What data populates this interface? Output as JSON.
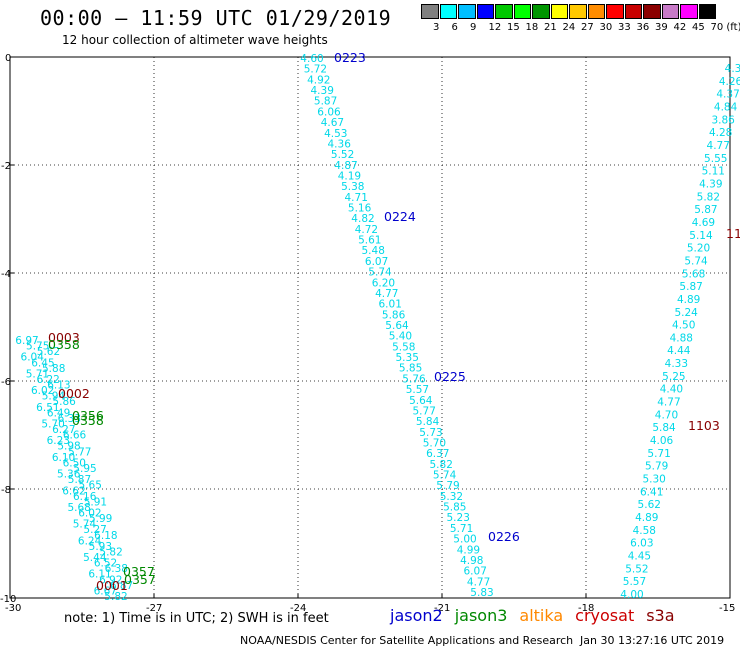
{
  "title": "00:00 – 11:59 UTC 01/29/2019",
  "subtitle": "12 hour collection of altimeter wave heights",
  "legend": {
    "colors": [
      "#808080",
      "#00ffff",
      "#00bfff",
      "#0000ff",
      "#00c800",
      "#00ff00",
      "#009600",
      "#ffff00",
      "#ffc800",
      "#ff8c00",
      "#ff0000",
      "#c80000",
      "#8b0000",
      "#c87ac8",
      "#ff00ff",
      "#000000"
    ],
    "labels": [
      "3",
      "6",
      "9",
      "12",
      "15",
      "18",
      "21",
      "24",
      "27",
      "30",
      "33",
      "36",
      "39",
      "42",
      "45",
      "70 (ft)"
    ]
  },
  "axes": {
    "x_ticks": [
      "-30",
      "-27",
      "-24",
      "-21",
      "-18",
      "-15"
    ],
    "y_ticks": [
      "0",
      "-2",
      "-4",
      "-6",
      "-8",
      "-10"
    ]
  },
  "colors": {
    "jason2": "#0000cc",
    "jason3": "#008800",
    "altika": "#ff8800",
    "cryosat": "#cc0000",
    "s3a": "#880000",
    "wave": "#00d8e8"
  },
  "tracks": [
    {
      "values": [
        "4.60",
        "5.72",
        "4.92",
        "4.39",
        "5.87",
        "6.06",
        "4.67",
        "4.53",
        "4.36",
        "5.52",
        "4.87",
        "4.19",
        "5.38",
        "4.71",
        "5.16",
        "4.82",
        "4.72",
        "5.61",
        "5.48",
        "6.07",
        "5.74",
        "6.20",
        "4.77",
        "6.01",
        "5.86",
        "5.64",
        "5.40",
        "5.58",
        "5.35",
        "5.85",
        "5.76",
        "5.57",
        "5.64",
        "5.77",
        "5.84",
        "5.73",
        "5.70",
        "6.37",
        "5.82",
        "5.74",
        "5.79",
        "5.32",
        "5.85",
        "5.23",
        "5.71",
        "5.00",
        "4.99",
        "4.98",
        "6.07",
        "4.77",
        "5.83"
      ]
    },
    {
      "values": [
        "4.3",
        "4.26",
        "4.37",
        "4.84",
        "3.86",
        "4.28",
        "4.77",
        "5.55",
        "5.11",
        "4.39",
        "5.82",
        "5.87",
        "4.69",
        "5.14",
        "5.20",
        "5.74",
        "5.68",
        "5.87",
        "4.89",
        "5.24",
        "4.50",
        "4.88",
        "4.44",
        "4.33",
        "5.25",
        "4.40",
        "4.77",
        "4.70",
        "5.84",
        "4.06",
        "5.71",
        "5.79",
        "5.30",
        "6.41",
        "5.62",
        "4.89",
        "4.58",
        "6.03",
        "4.45",
        "5.52",
        "5.57",
        "4.00"
      ]
    },
    {
      "values": [
        "6.97",
        "5.75",
        "5.62",
        "6.04",
        "6.45",
        "5.88",
        "5.71",
        "6.22",
        "6.13",
        "6.02",
        "5.94",
        "5.86",
        "6.51",
        "6.49",
        "6.33",
        "5.70",
        "6.27",
        "6.66",
        "6.23",
        "5.98",
        "5.77",
        "6.10",
        "6.50",
        "5.95",
        "5.36",
        "5.87",
        "5.65",
        "6.62",
        "6.16",
        "5.91",
        "5.68",
        "6.02",
        "5.99",
        "5.74",
        "5.27",
        "6.18",
        "6.24",
        "5.93",
        "5.82",
        "5.44",
        "6.52",
        "6.38",
        "6.11",
        "6.92",
        "6.87",
        "6.67",
        "5.82"
      ]
    }
  ],
  "pass_labels": [
    {
      "text": "0223",
      "sat": "jason2"
    },
    {
      "text": "0224",
      "sat": "jason2"
    },
    {
      "text": "0225",
      "sat": "jason2"
    },
    {
      "text": "0226",
      "sat": "jason2"
    },
    {
      "text": "0003",
      "sat": "s3a"
    },
    {
      "text": "0358",
      "sat": "jason3"
    },
    {
      "text": "0002",
      "sat": "s3a"
    },
    {
      "text": "0356",
      "sat": "jason3"
    },
    {
      "text": "0358",
      "sat": "jason3"
    },
    {
      "text": "0357",
      "sat": "jason3"
    },
    {
      "text": "0001",
      "sat": "s3a"
    },
    {
      "text": "0357",
      "sat": "jason3"
    },
    {
      "text": "11",
      "sat": "s3a"
    },
    {
      "text": "1103",
      "sat": "s3a"
    }
  ],
  "footnote": "note:  1) Time is in UTC;  2) SWH is in feet",
  "satellites": [
    {
      "name": "jason2",
      "color": "#0000cc"
    },
    {
      "name": "jason3",
      "color": "#008800"
    },
    {
      "name": "altika",
      "color": "#ff8800"
    },
    {
      "name": "cryosat",
      "color": "#cc0000"
    },
    {
      "name": "s3a",
      "color": "#880000"
    }
  ],
  "credit": "NOAA/NESDIS Center for Satellite Applications and Research",
  "timestamp": "Jan 30 13:27:16 UTC 2019"
}
